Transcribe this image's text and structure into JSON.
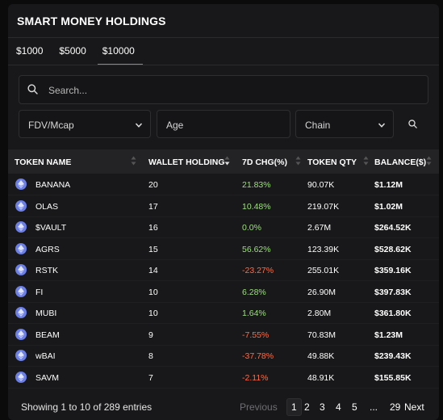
{
  "header": {
    "title": "SMART MONEY HOLDINGS"
  },
  "tabs": [
    {
      "label": "$1000"
    },
    {
      "label": "$5000"
    },
    {
      "label": "$10000"
    }
  ],
  "search": {
    "placeholder": "Search..."
  },
  "filters": {
    "fdv": "FDV/Mcap",
    "age_placeholder": "Age",
    "chain": "Chain"
  },
  "table": {
    "columns": [
      "TOKEN NAME",
      "WALLET HOLDING",
      "7D CHG(%)",
      "TOKEN QTY",
      "BALANCE($)"
    ],
    "rows": [
      {
        "name": "BANANA",
        "wallets": "20",
        "chg": "21.83%",
        "qty": "90.07K",
        "bal": "$1.12M",
        "dir": "pos"
      },
      {
        "name": "OLAS",
        "wallets": "17",
        "chg": "10.48%",
        "qty": "219.07K",
        "bal": "$1.02M",
        "dir": "pos"
      },
      {
        "name": "$VAULT",
        "wallets": "16",
        "chg": "0.0%",
        "qty": "2.67M",
        "bal": "$264.52K",
        "dir": "pos"
      },
      {
        "name": "AGRS",
        "wallets": "15",
        "chg": "56.62%",
        "qty": "123.39K",
        "bal": "$528.62K",
        "dir": "pos"
      },
      {
        "name": "RSTK",
        "wallets": "14",
        "chg": "-23.27%",
        "qty": "255.01K",
        "bal": "$359.16K",
        "dir": "neg"
      },
      {
        "name": "FI",
        "wallets": "10",
        "chg": "6.28%",
        "qty": "26.90M",
        "bal": "$397.83K",
        "dir": "pos"
      },
      {
        "name": "MUBI",
        "wallets": "10",
        "chg": "1.64%",
        "qty": "2.80M",
        "bal": "$361.80K",
        "dir": "pos"
      },
      {
        "name": "BEAM",
        "wallets": "9",
        "chg": "-7.55%",
        "qty": "70.83M",
        "bal": "$1.23M",
        "dir": "neg"
      },
      {
        "name": "wBAI",
        "wallets": "8",
        "chg": "-37.78%",
        "qty": "49.88K",
        "bal": "$239.43K",
        "dir": "neg"
      },
      {
        "name": "SAVM",
        "wallets": "7",
        "chg": "-2.11%",
        "qty": "48.91K",
        "bal": "$155.85K",
        "dir": "neg"
      }
    ]
  },
  "footer": {
    "info": "Showing 1 to 10 of 289 entries",
    "previous": "Previous",
    "pages": [
      "1",
      "2",
      "3",
      "4",
      "5",
      "...",
      "29"
    ],
    "next": "Next"
  },
  "colors": {
    "accent": "#e8663a",
    "positive": "#9be27a",
    "negative": "#ff6b45",
    "eth_icon": "#6b7fe6"
  },
  "icons": {
    "search": "search-icon",
    "chevron": "chevron-down-icon",
    "sort": "sort-icon",
    "token": "ethereum-icon"
  }
}
